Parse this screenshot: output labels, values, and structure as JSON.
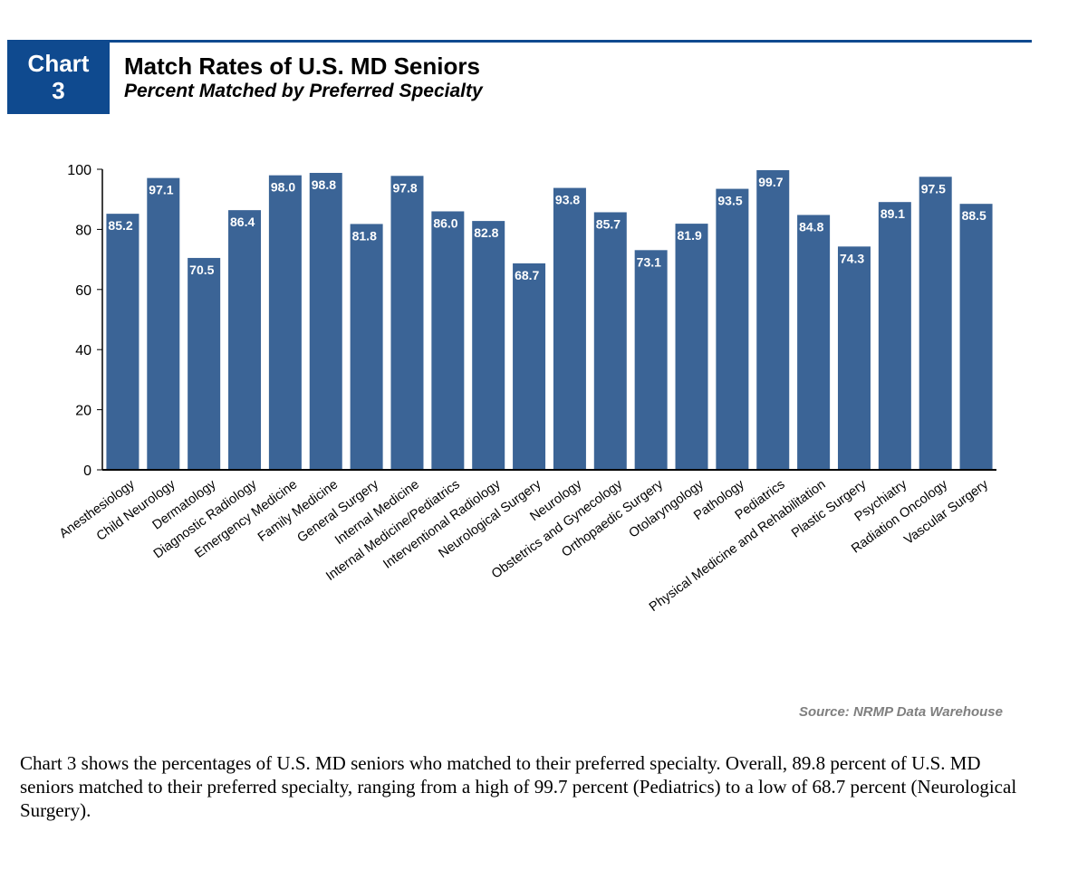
{
  "badge": {
    "line1": "Chart",
    "line2": "3"
  },
  "header": {
    "title": "Match Rates of U.S. MD Seniors",
    "subtitle": "Percent Matched by Preferred Specialty"
  },
  "source": "Source: NRMP Data Warehouse",
  "caption": "Chart 3 shows the percentages of U.S. MD seniors who matched to their preferred specialty. Overall, 89.8 percent of U.S. MD seniors matched to their preferred specialty, ranging from a high of 99.7 percent (Pediatrics) to a low of 68.7 percent (Neurological Surgery).",
  "colors": {
    "bar": "#3b6496",
    "badge": "#0f4a8f",
    "axis": "#000000",
    "label": "#ffffff"
  },
  "chart_data": {
    "type": "bar",
    "title": "Match Rates of U.S. MD Seniors",
    "subtitle": "Percent Matched by Preferred Specialty",
    "xlabel": "",
    "ylabel": "",
    "ylim": [
      0,
      100
    ],
    "yticks": [
      0,
      20,
      40,
      60,
      80,
      100
    ],
    "grid": false,
    "categories": [
      "Anesthesiology",
      "Child Neurology",
      "Dermatology",
      "Diagnostic Radiology",
      "Emergency Medicine",
      "Family Medicine",
      "General Surgery",
      "Internal Medicine",
      "Internal Medicine/Pediatrics",
      "Interventional Radiology",
      "Neurological Surgery",
      "Neurology",
      "Obstetrics and Gynecology",
      "Orthopaedic Surgery",
      "Otolaryngology",
      "Pathology",
      "Pediatrics",
      "Physical Medicine and Rehabilitation",
      "Plastic Surgery",
      "Psychiatry",
      "Radiation Oncology",
      "Vascular Surgery"
    ],
    "values": [
      85.2,
      97.1,
      70.5,
      86.4,
      98.0,
      98.8,
      81.8,
      97.8,
      86.0,
      82.8,
      68.7,
      93.8,
      85.7,
      73.1,
      81.9,
      93.5,
      99.7,
      84.8,
      74.3,
      89.1,
      97.5,
      88.5
    ],
    "value_labels": [
      "85.2",
      "97.1",
      "70.5",
      "86.4",
      "98.0",
      "98.8",
      "81.8",
      "97.8",
      "86.0",
      "82.8",
      "68.7",
      "93.8",
      "85.7",
      "73.1",
      "81.9",
      "93.5",
      "99.7",
      "84.8",
      "74.3",
      "89.1",
      "97.5",
      "88.5"
    ]
  }
}
